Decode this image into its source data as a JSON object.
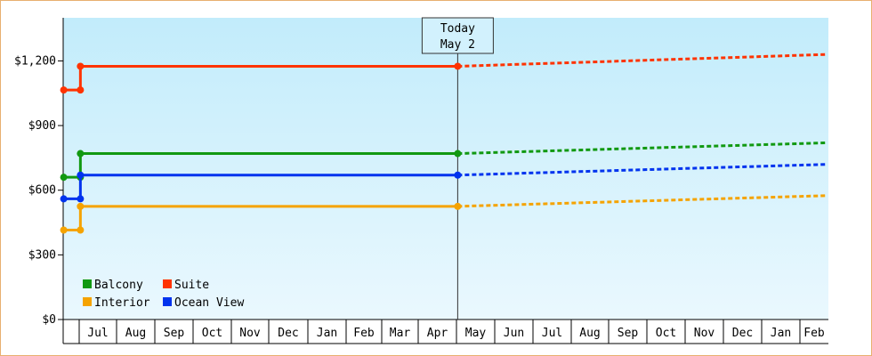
{
  "chart_data": {
    "type": "line",
    "ylim": [
      0,
      1400
    ],
    "y_ticks": [
      {
        "value": 0,
        "label": "$0"
      },
      {
        "value": 300,
        "label": "$300"
      },
      {
        "value": 600,
        "label": "$600"
      },
      {
        "value": 900,
        "label": "$900"
      },
      {
        "value": 1200,
        "label": "$1,200"
      }
    ],
    "x_ticks": [
      "Jul",
      "Aug",
      "Sep",
      "Oct",
      "Nov",
      "Dec",
      "Jan",
      "Feb",
      "Mar",
      "Apr",
      "May",
      "Jun",
      "Jul",
      "Aug",
      "Sep",
      "Oct",
      "Nov",
      "Dec",
      "Jan",
      "Feb"
    ],
    "today": {
      "line1": "Today",
      "line2": "May 2"
    },
    "legend_position": "bottom-left",
    "background": "light-blue gradient",
    "series": [
      {
        "name": "Balcony",
        "color": "#119911",
        "history": [
          [
            "Jun 2",
            660
          ],
          [
            "Jul 2",
            660
          ],
          [
            "Jul 2",
            770
          ],
          [
            "May 2",
            770
          ]
        ],
        "forecast": [
          [
            "May 2",
            770
          ],
          [
            "Feb 28",
            820
          ]
        ]
      },
      {
        "name": "Suite",
        "color": "#ff3300",
        "history": [
          [
            "Jun 2",
            1065
          ],
          [
            "Jul 2",
            1065
          ],
          [
            "Jul 2",
            1175
          ],
          [
            "May 2",
            1175
          ]
        ],
        "forecast": [
          [
            "May 2",
            1175
          ],
          [
            "Feb 28",
            1230
          ]
        ]
      },
      {
        "name": "Interior",
        "color": "#f5a300",
        "history": [
          [
            "Jun 2",
            415
          ],
          [
            "Jul 2",
            415
          ],
          [
            "Jul 2",
            525
          ],
          [
            "May 2",
            525
          ]
        ],
        "forecast": [
          [
            "May 2",
            525
          ],
          [
            "Feb 28",
            575
          ]
        ]
      },
      {
        "name": "Ocean View",
        "color": "#0033ee",
        "history": [
          [
            "Jun 2",
            560
          ],
          [
            "Jul 2",
            560
          ],
          [
            "Jul 2",
            670
          ],
          [
            "May 2",
            670
          ]
        ],
        "forecast": [
          [
            "May 2",
            670
          ],
          [
            "Feb 28",
            720
          ]
        ]
      }
    ]
  }
}
